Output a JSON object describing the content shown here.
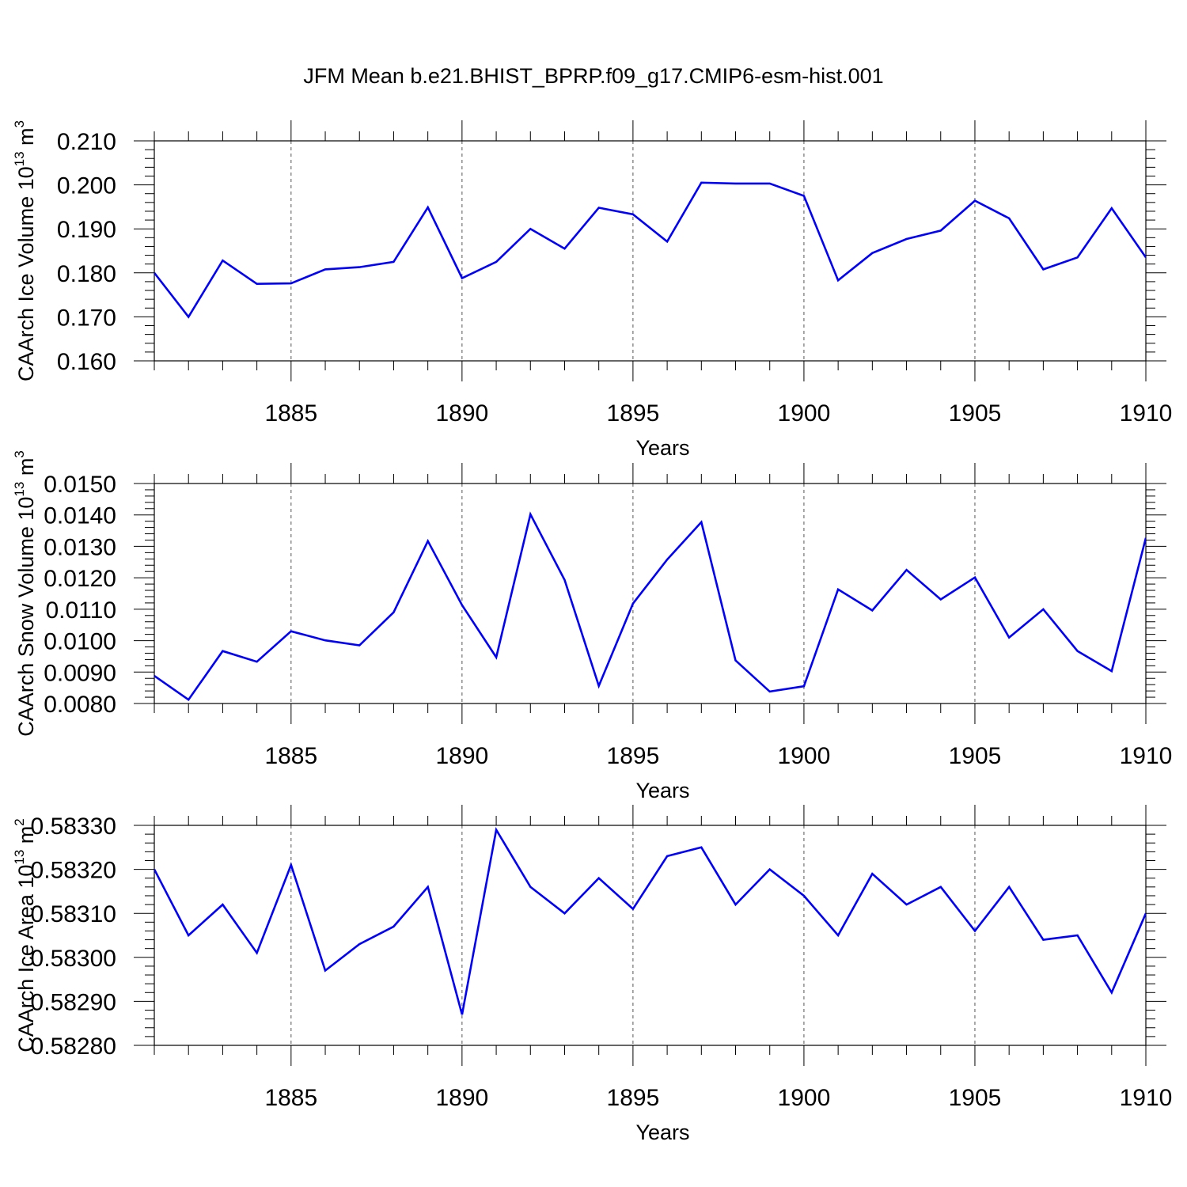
{
  "figure_title": "JFM Mean b.e21.BHIST_BPRP.f09_g17.CMIP6-esm-hist.001",
  "chart_data": [
    {
      "type": "line",
      "title": "",
      "xlabel": "Years",
      "ylabel": "CAArch Ice Volume 10",
      "ylabel_exp": "13",
      "ylabel_unit": "m",
      "ylabel_unit_exp": "3",
      "line_color": "#0000ff",
      "grid": "vertical dashed at major x ticks",
      "xlim": [
        1881,
        1910
      ],
      "ylim": [
        0.16,
        0.21
      ],
      "xticks": [
        1885,
        1890,
        1895,
        1900,
        1905,
        1910
      ],
      "yticks": [
        "0.160",
        "0.170",
        "0.180",
        "0.190",
        "0.200",
        "0.210"
      ],
      "series": [
        {
          "name": "CAArch Ice Volume",
          "x": [
            1881,
            1882,
            1883,
            1884,
            1885,
            1886,
            1887,
            1888,
            1889,
            1890,
            1891,
            1892,
            1893,
            1894,
            1895,
            1896,
            1897,
            1898,
            1899,
            1900,
            1901,
            1902,
            1903,
            1904,
            1905,
            1906,
            1907,
            1908,
            1909,
            1910
          ],
          "values": [
            0.18,
            0.17,
            0.1828,
            0.1775,
            0.1776,
            0.1808,
            0.1813,
            0.1825,
            0.1949,
            0.1788,
            0.1825,
            0.19,
            0.1855,
            0.1948,
            0.1933,
            0.1871,
            0.2005,
            0.2003,
            0.2003,
            0.1975,
            0.1783,
            0.1845,
            0.1877,
            0.1896,
            0.1964,
            0.1924,
            0.1808,
            0.1835,
            0.1947,
            0.1835
          ]
        }
      ]
    },
    {
      "type": "line",
      "title": "",
      "xlabel": "Years",
      "ylabel": "CAArch Snow Volume 10",
      "ylabel_exp": "13",
      "ylabel_unit": "m",
      "ylabel_unit_exp": "3",
      "line_color": "#0000ff",
      "grid": "vertical dashed at major x ticks",
      "xlim": [
        1881,
        1910
      ],
      "ylim": [
        0.008,
        0.015
      ],
      "xticks": [
        1885,
        1890,
        1895,
        1900,
        1905,
        1910
      ],
      "yticks": [
        "0.0080",
        "0.0090",
        "0.0100",
        "0.0110",
        "0.0120",
        "0.0130",
        "0.0140",
        "0.0150"
      ],
      "series": [
        {
          "name": "CAArch Snow Volume",
          "x": [
            1881,
            1882,
            1883,
            1884,
            1885,
            1886,
            1887,
            1888,
            1889,
            1890,
            1891,
            1892,
            1893,
            1894,
            1895,
            1896,
            1897,
            1898,
            1899,
            1900,
            1901,
            1902,
            1903,
            1904,
            1905,
            1906,
            1907,
            1908,
            1909,
            1910
          ],
          "values": [
            0.00888,
            0.00812,
            0.00967,
            0.00933,
            0.0103,
            0.01001,
            0.00985,
            0.0109,
            0.01317,
            0.01113,
            0.00947,
            0.01402,
            0.01193,
            0.00856,
            0.01118,
            0.01258,
            0.01377,
            0.00937,
            0.00838,
            0.00855,
            0.01163,
            0.01096,
            0.01225,
            0.01131,
            0.01201,
            0.0101,
            0.011,
            0.00967,
            0.00903,
            0.01327
          ]
        }
      ]
    },
    {
      "type": "line",
      "title": "",
      "xlabel": "Years",
      "ylabel": "CAArch Ice Area 10",
      "ylabel_exp": "13",
      "ylabel_unit": "m",
      "ylabel_unit_exp": "2",
      "line_color": "#0000ff",
      "grid": "vertical dashed at major x ticks",
      "xlim": [
        1881,
        1910
      ],
      "ylim": [
        0.5828,
        0.5833
      ],
      "xticks": [
        1885,
        1890,
        1895,
        1900,
        1905,
        1910
      ],
      "yticks": [
        "0.58280",
        "0.58290",
        "0.58300",
        "0.58310",
        "0.58320",
        "0.58330"
      ],
      "series": [
        {
          "name": "CAArch Ice Area",
          "x": [
            1881,
            1882,
            1883,
            1884,
            1885,
            1886,
            1887,
            1888,
            1889,
            1890,
            1891,
            1892,
            1893,
            1894,
            1895,
            1896,
            1897,
            1898,
            1899,
            1900,
            1901,
            1902,
            1903,
            1904,
            1905,
            1906,
            1907,
            1908,
            1909,
            1910
          ],
          "values": [
            0.5832,
            0.58305,
            0.58312,
            0.58301,
            0.58321,
            0.58297,
            0.58303,
            0.58307,
            0.58316,
            0.58287,
            0.58329,
            0.58316,
            0.5831,
            0.58318,
            0.58311,
            0.58323,
            0.58325,
            0.58312,
            0.5832,
            0.58314,
            0.58305,
            0.58319,
            0.58312,
            0.58316,
            0.58306,
            0.58316,
            0.58304,
            0.58305,
            0.58292,
            0.5831
          ]
        }
      ]
    }
  ]
}
